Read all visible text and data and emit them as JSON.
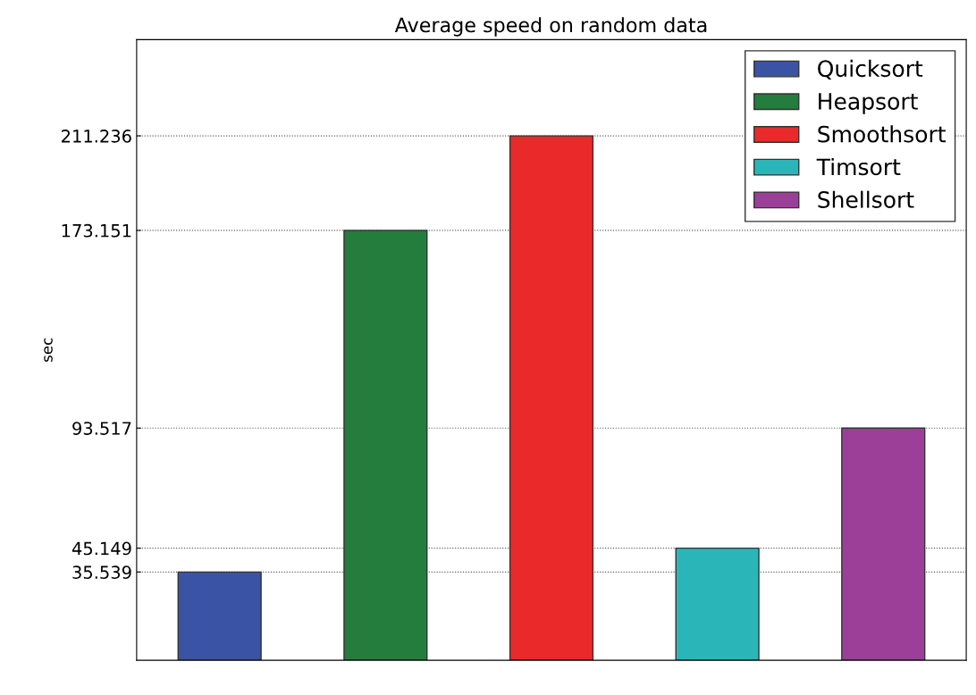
{
  "chart_data": {
    "type": "bar",
    "title": "Average speed on random data",
    "ylabel": "sec",
    "categories": [
      null,
      null,
      null,
      null,
      null
    ],
    "series": [
      {
        "name": "Quicksort",
        "color": "#3a53a4",
        "values": [
          35.539,
          null,
          null,
          null,
          null
        ]
      },
      {
        "name": "Heapsort",
        "color": "#247c3d",
        "values": [
          null,
          173.151,
          null,
          null,
          null
        ]
      },
      {
        "name": "Smoothsort",
        "color": "#ea2a2a",
        "values": [
          null,
          null,
          211.236,
          null,
          null
        ]
      },
      {
        "name": "Timsort",
        "color": "#2ab6b8",
        "values": [
          null,
          null,
          null,
          45.149,
          null
        ]
      },
      {
        "name": "Shellsort",
        "color": "#9b3f99",
        "values": [
          null,
          null,
          null,
          null,
          93.517
        ]
      }
    ],
    "ylim": [
      0,
      250
    ],
    "yticks": [
      35.539,
      45.149,
      93.517,
      173.151,
      211.236
    ],
    "grid": "y",
    "legend": "top right",
    "tick_labels": "y"
  }
}
